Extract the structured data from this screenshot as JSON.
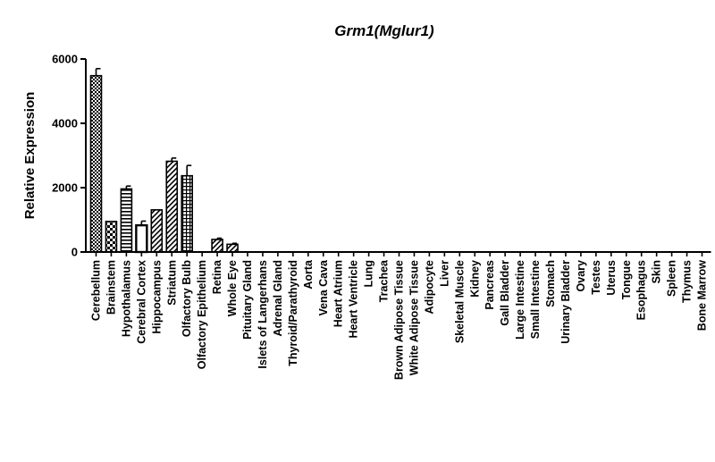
{
  "chart_data": {
    "type": "bar",
    "title": "Grm1(Mglur1)",
    "xlabel": "",
    "ylabel": "Relative Expression",
    "ylim": [
      0,
      6000
    ],
    "yticks": [
      "0",
      "2000",
      "4000",
      "6000"
    ],
    "grid": false,
    "categories": [
      "Cerebellum",
      "Brainstem",
      "Hypothalamus",
      "Cerebral Cortex",
      "Hippocampus",
      "Striatum",
      "Olfactory Bulb",
      "Olfactory Epithelium",
      "Retina",
      "Whole Eye",
      "Pituitary Gland",
      "Islets of Langerhans",
      "Adrenal Gland",
      "Thyroid/Parathyroid",
      "Aorta",
      "Vena Cava",
      "Heart Atrium",
      "Heart Ventricle",
      "Lung",
      "Trachea",
      "Brown Adipose Tissue",
      "White Adipose Tissue",
      "Adipocyte",
      "Liver",
      "Skeletal Muscle",
      "Kidney",
      "Pancreas",
      "Gall Bladder",
      "Large Intestine",
      "Small Intestine",
      "Stomach",
      "Urinary Bladder",
      "Ovary",
      "Testes",
      "Uterus",
      "Tongue",
      "Esophagus",
      "Skin",
      "Spleen",
      "Thymus",
      "Bone Marrow"
    ],
    "values": [
      5480,
      950,
      1960,
      830,
      1310,
      2820,
      2370,
      0,
      390,
      240,
      0,
      0,
      0,
      0,
      0,
      0,
      0,
      0,
      0,
      0,
      0,
      0,
      0,
      0,
      0,
      0,
      0,
      0,
      0,
      0,
      0,
      0,
      0,
      0,
      0,
      0,
      0,
      0,
      0,
      0,
      0
    ],
    "errors": [
      220,
      0,
      90,
      130,
      0,
      100,
      320,
      0,
      40,
      30,
      0,
      0,
      0,
      0,
      0,
      0,
      0,
      0,
      0,
      0,
      0,
      0,
      0,
      0,
      0,
      0,
      0,
      0,
      0,
      0,
      0,
      0,
      0,
      0,
      0,
      0,
      0,
      0,
      0,
      0,
      0
    ],
    "patterns": [
      "checker",
      "bigchecker",
      "hlines",
      "hollow",
      "diag",
      "diag",
      "grid",
      "none",
      "diag",
      "diag",
      "none",
      "none",
      "none",
      "none",
      "none",
      "none",
      "none",
      "none",
      "none",
      "none",
      "none",
      "none",
      "none",
      "none",
      "none",
      "none",
      "none",
      "none",
      "none",
      "none",
      "none",
      "none",
      "none",
      "none",
      "none",
      "none",
      "none",
      "none",
      "none",
      "none",
      "none"
    ]
  }
}
